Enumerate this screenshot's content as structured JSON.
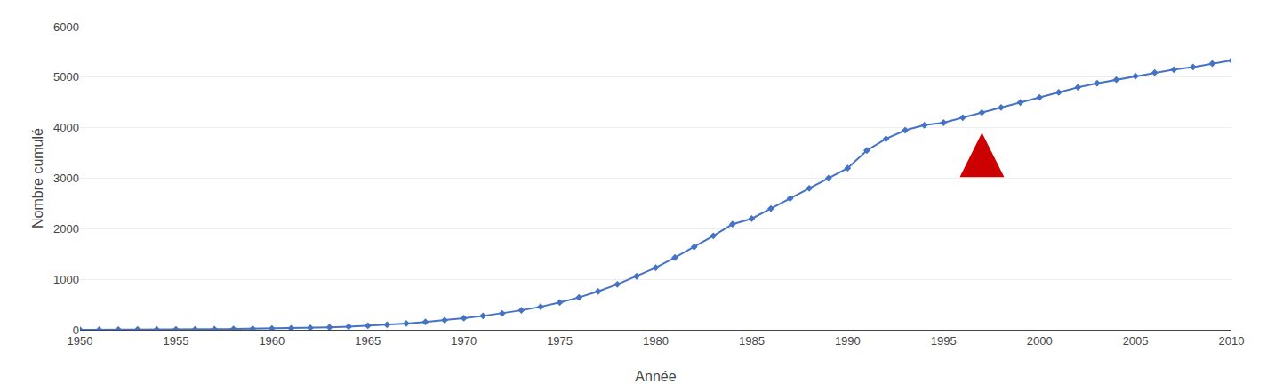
{
  "chart_data": {
    "type": "line",
    "xlabel": "Année",
    "ylabel": "Nombre cumulé",
    "x": [
      1950,
      1951,
      1952,
      1953,
      1954,
      1955,
      1956,
      1957,
      1958,
      1959,
      1960,
      1961,
      1962,
      1963,
      1964,
      1965,
      1966,
      1967,
      1968,
      1969,
      1970,
      1971,
      1972,
      1973,
      1974,
      1975,
      1976,
      1977,
      1978,
      1979,
      1980,
      1981,
      1982,
      1983,
      1984,
      1985,
      1986,
      1987,
      1988,
      1989,
      1990,
      1991,
      1992,
      1993,
      1994,
      1995,
      1996,
      1997,
      1998,
      1999,
      2000,
      2001,
      2002,
      2003,
      2004,
      2005,
      2006,
      2007,
      2008,
      2009,
      2010
    ],
    "values": [
      2,
      2,
      3,
      4,
      5,
      7,
      9,
      12,
      16,
      20,
      25,
      30,
      38,
      48,
      62,
      80,
      100,
      125,
      155,
      190,
      230,
      275,
      325,
      385,
      455,
      540,
      640,
      760,
      900,
      1060,
      1230,
      1430,
      1640,
      1860,
      2090,
      2200,
      2400,
      2600,
      2800,
      3000,
      3200,
      3550,
      3780,
      3950,
      4050,
      4100,
      4200,
      4300,
      4400,
      4500,
      4600,
      4700,
      4800,
      4880,
      4950,
      5020,
      5090,
      5150,
      5200,
      5270,
      5330
    ],
    "color": "#4472C4",
    "marker": "diamond",
    "xlim": [
      1950,
      2010
    ],
    "xticks": [
      1950,
      1955,
      1960,
      1965,
      1970,
      1975,
      1980,
      1985,
      1990,
      1995,
      2000,
      2005,
      2010
    ],
    "ylim": [
      0,
      6000
    ],
    "yticks": [
      0,
      1000,
      2000,
      3000,
      4000,
      5000,
      6000
    ],
    "grid": true,
    "arrow": {
      "x": 1997.0,
      "y_bottom": 3150,
      "y_top": 3900,
      "color": "#CC0000"
    }
  }
}
